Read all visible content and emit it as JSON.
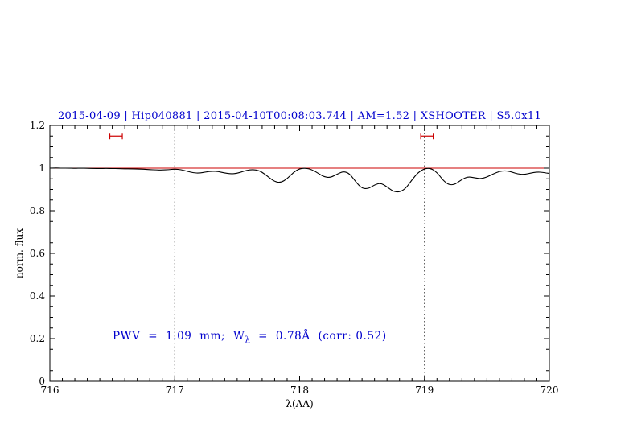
{
  "chart_data": {
    "type": "line",
    "title": "2015-04-09 | Hip040881 | 2015-04-10T00:08:03.744 | AM=1.52 | XSHOOTER | S5.0x11",
    "xlabel": "λ(AA)",
    "ylabel": "norm. flux",
    "xlim": [
      716,
      720
    ],
    "ylim": [
      0,
      1.2
    ],
    "grid": false,
    "legend": null,
    "x_ticks": {
      "major": [
        716,
        717,
        718,
        719,
        720
      ],
      "labels": [
        "716",
        "717",
        "718",
        "719",
        "720"
      ],
      "minor_step": 0.1
    },
    "y_ticks": {
      "major": [
        0,
        0.2,
        0.4,
        0.6,
        0.8,
        1,
        1.2
      ],
      "labels": [
        "0",
        "0.2",
        "0.4",
        "0.6",
        "0.8",
        "1",
        "1.2"
      ],
      "minor_step": 0.05
    },
    "vlines": {
      "x": [
        717,
        719
      ],
      "style": "dotted",
      "color": "#333333"
    },
    "continuum": {
      "y": 1.0,
      "color": "#cc0000"
    },
    "windows": [
      {
        "x1": 716.48,
        "x2": 716.58,
        "y": 1.15
      },
      {
        "x1": 718.97,
        "x2": 719.07,
        "y": 1.15
      }
    ],
    "annotation": "PWV = 1.09 mm; Wλ = 0.78Å (corr: 0.52)",
    "annotation_parts": {
      "pre": "PWV  =  1.09  mm;  W",
      "sub": "λ",
      "post": "  =  0.78Å  (corr: 0.52)"
    },
    "series": [
      {
        "name": "spectrum",
        "color": "#000000",
        "x": [
          716,
          716.05,
          716.1,
          716.15,
          716.2,
          716.25,
          716.3,
          716.35,
          716.4,
          716.45,
          716.5,
          716.55,
          716.6,
          716.65,
          716.7,
          716.75,
          716.8,
          716.85,
          716.9,
          716.95,
          717,
          717.05,
          717.1,
          717.15,
          717.2,
          717.25,
          717.3,
          717.35,
          717.4,
          717.45,
          717.5,
          717.55,
          717.6,
          717.65,
          717.7,
          717.75,
          717.8,
          717.85,
          717.9,
          717.95,
          718,
          718.05,
          718.1,
          718.15,
          718.2,
          718.25,
          718.3,
          718.35,
          718.4,
          718.45,
          718.5,
          718.55,
          718.6,
          718.65,
          718.7,
          718.75,
          718.8,
          718.85,
          718.9,
          718.95,
          719,
          719.05,
          719.1,
          719.15,
          719.2,
          719.25,
          719.3,
          719.35,
          719.4,
          719.45,
          719.5,
          719.55,
          719.6,
          719.65,
          719.7,
          719.75,
          719.8,
          719.85,
          719.9,
          719.95,
          720
        ],
        "y": [
          1.0,
          1.001,
          1.0,
          1.0,
          0.999,
          1.0,
          0.999,
          0.999,
          0.998,
          0.999,
          0.998,
          0.998,
          0.997,
          0.997,
          0.996,
          0.995,
          0.993,
          0.992,
          0.991,
          0.993,
          0.996,
          0.993,
          0.985,
          0.978,
          0.977,
          0.982,
          0.986,
          0.984,
          0.977,
          0.973,
          0.976,
          0.985,
          0.993,
          0.993,
          0.982,
          0.958,
          0.937,
          0.932,
          0.95,
          0.98,
          0.998,
          1.0,
          0.993,
          0.975,
          0.958,
          0.956,
          0.972,
          0.985,
          0.975,
          0.935,
          0.905,
          0.903,
          0.922,
          0.93,
          0.912,
          0.89,
          0.887,
          0.905,
          0.945,
          0.98,
          0.998,
          1.0,
          0.98,
          0.942,
          0.92,
          0.925,
          0.948,
          0.96,
          0.955,
          0.95,
          0.958,
          0.973,
          0.985,
          0.988,
          0.982,
          0.972,
          0.97,
          0.977,
          0.982,
          0.98,
          0.975
        ]
      }
    ]
  },
  "colors": {
    "title": "#0000cd",
    "annotation": "#0000cd",
    "spectrum": "#000000",
    "continuum": "#cc0000",
    "window_markers": "#cc0000",
    "axis": "#000000",
    "background": "#ffffff"
  }
}
